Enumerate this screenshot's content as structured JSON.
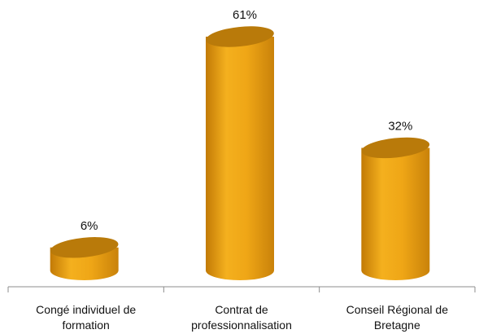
{
  "chart_data": {
    "type": "bar",
    "style": "3d-cylinder",
    "title": "",
    "xlabel": "",
    "ylabel": "",
    "categories": [
      [
        "Congé individuel de",
        "formation"
      ],
      [
        "Contrat de",
        "professionnalisation"
      ],
      [
        "Conseil Régional de",
        "Bretagne"
      ]
    ],
    "values": [
      6,
      61,
      32
    ],
    "value_labels": [
      "6%",
      "61%",
      "32%"
    ],
    "unit": "%",
    "ylim": [
      0,
      61
    ],
    "grid": false,
    "legend": "none",
    "colors": {
      "body_light": "#F5B21A",
      "body_mid": "#E39A0D",
      "body_dark": "#B86F04",
      "top": "#B97A0A",
      "axis": "#8C8C8C"
    }
  }
}
